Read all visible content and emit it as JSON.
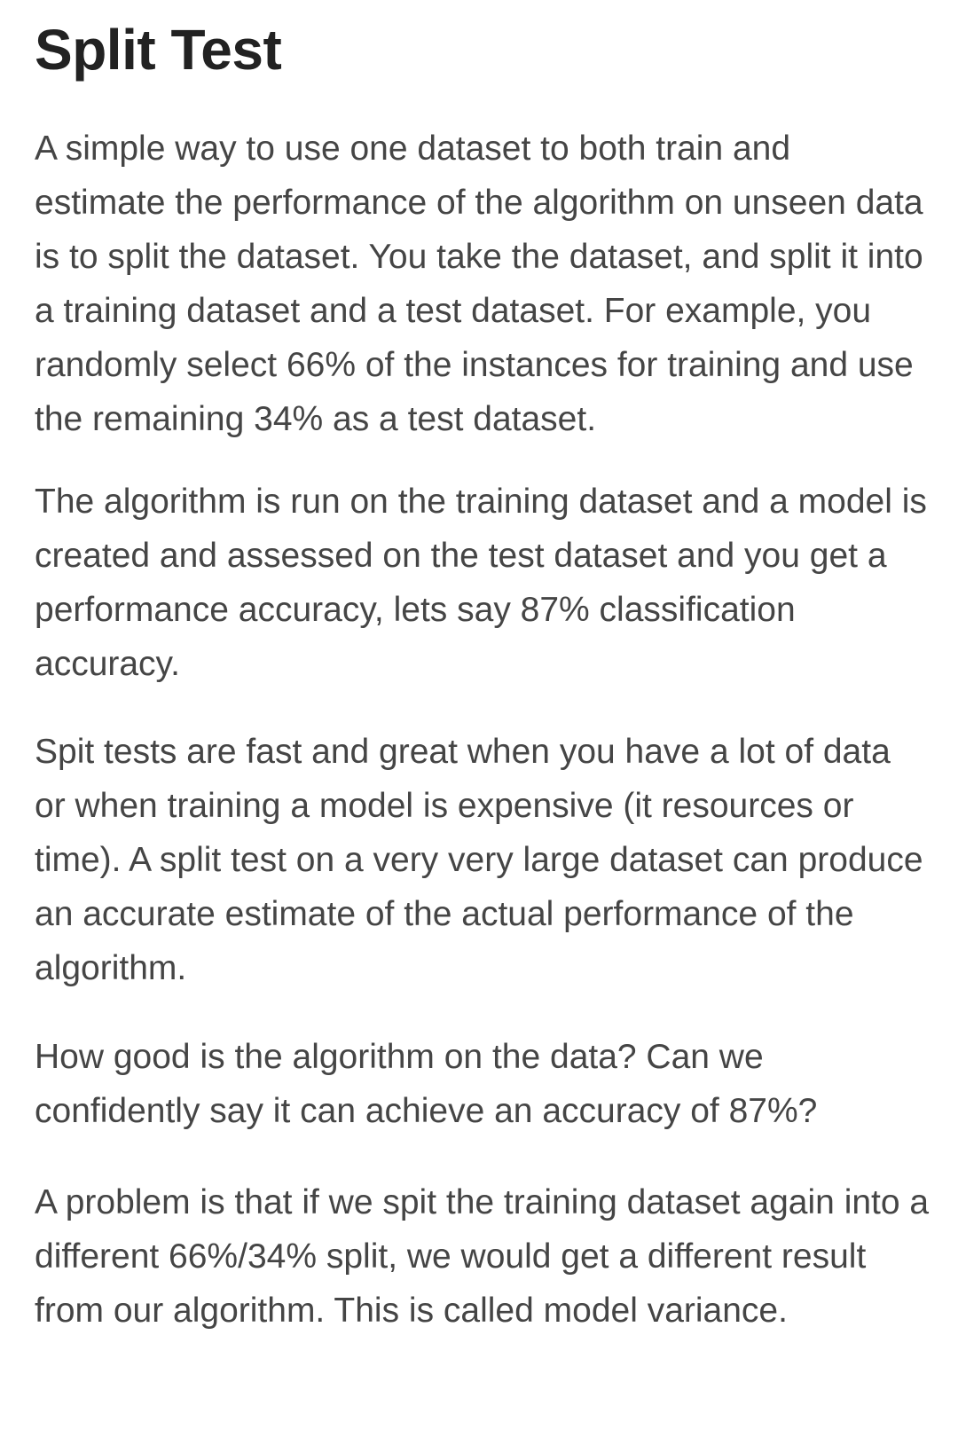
{
  "article": {
    "title": "Split Test",
    "paragraphs": [
      "A simple way to use one dataset to both train and estimate the performance of the algorithm on unseen data is to split the dataset. You take the dataset, and split it into a training dataset and a test dataset. For example, you randomly select 66% of the instances for training and use the remaining 34% as a test dataset.",
      "The algorithm is run on the training dataset and a model is created and assessed on the test dataset and you get a performance accuracy, lets say 87% classification accuracy.",
      "Spit tests are fast and great when you have a lot of data or when training a model is expensive (it resources or time). A split test on a very very large dataset can produce an accurate estimate of the actual performance of the algorithm.",
      "How good is the algorithm on the data? Can we confidently say it can achieve an accuracy of 87%?",
      "A problem is that if we spit the training dataset again into a different 66%/34% split, we would get a different result from our algorithm. This is called model variance."
    ]
  }
}
